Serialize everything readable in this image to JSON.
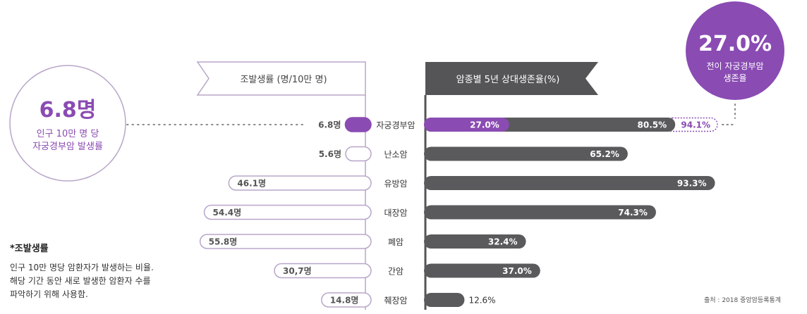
{
  "chart_data": [
    {
      "type": "bar",
      "title": "조발생률 (명/10만 명)",
      "categories": [
        "자궁경부암",
        "난소암",
        "유방암",
        "대장암",
        "폐암",
        "간암",
        "췌장암"
      ],
      "series": [
        {
          "values": [
            6.8,
            5.6,
            46.1,
            54.4,
            55.8,
            30.7,
            14.8
          ]
        }
      ],
      "value_labels": [
        "6.8명",
        "5.6명",
        "46.1명",
        "54.4명",
        "55.8명",
        "30,7명",
        "14.8명"
      ],
      "orientation": "horizontal",
      "direction": "right-to-left",
      "highlight_category": "자궁경부암"
    },
    {
      "type": "bar",
      "title": "암종별 5년 상대생존율(%)",
      "categories": [
        "자궁경부암",
        "난소암",
        "유방암",
        "대장암",
        "폐암",
        "간암",
        "췌장암"
      ],
      "series": [
        {
          "values": [
            80.5,
            65.2,
            93.3,
            74.3,
            32.4,
            37.0,
            12.6
          ]
        }
      ],
      "value_labels": [
        "80.5%",
        "65.2%",
        "93.3%",
        "74.3%",
        "32.4%",
        "37.0%",
        "12.6%"
      ],
      "extras": [
        {
          "category": "자궁경부암",
          "value": 27.0,
          "label": "27.0%",
          "style": "highlight"
        },
        {
          "category": "자궁경부암",
          "value": 94.1,
          "label": "94.1%",
          "style": "dotted-outline"
        }
      ],
      "orientation": "horizontal"
    }
  ],
  "left_callout": {
    "big": "6.8명",
    "line1": "인구 10만 명 당",
    "line2": "자궁경부암 발생률"
  },
  "right_callout": {
    "big": "27.0%",
    "line1": "전이 자궁경부암",
    "line2": "생존율"
  },
  "note": {
    "title": "*조발생률",
    "lines": [
      "인구 10만 명당 암환자가 발생하는 비율.",
      "해당 기간 동안 새로 발생한 암환자 수를",
      "파악하기 위해 사용함."
    ]
  },
  "source": "출처 : 2018 중앙암등록통계",
  "colors": {
    "accent": "#8a4bb3",
    "dark_bar": "#5a5a5c",
    "label_text": "#555555"
  }
}
